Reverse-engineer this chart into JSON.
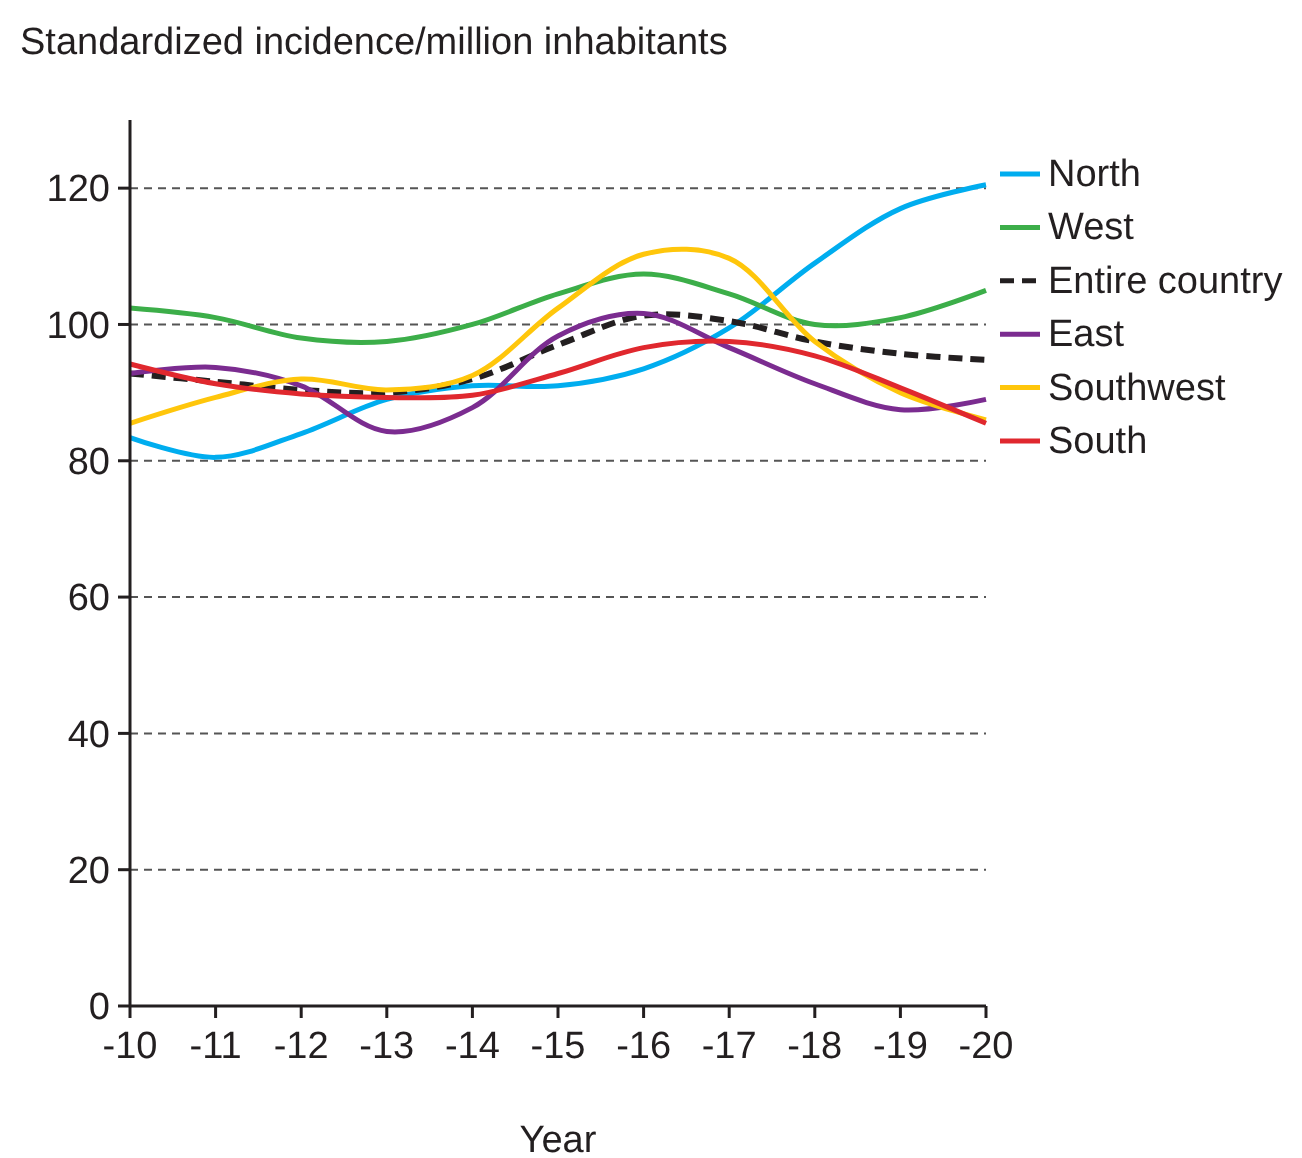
{
  "chart_data": {
    "type": "line",
    "title": "Standardized incidence/million inhabitants",
    "xlabel": "Year",
    "categories": [
      "-10",
      "-11",
      "-12",
      "-13",
      "-14",
      "-15",
      "-16",
      "-17",
      "-18",
      "-19",
      "-20"
    ],
    "series": [
      {
        "name": "North",
        "color": "#00adef",
        "values": [
          83.4,
          80.5,
          84,
          89,
          91,
          91,
          93.5,
          99.5,
          109,
          117,
          120.5
        ]
      },
      {
        "name": "West",
        "color": "#3cae49",
        "values": [
          102.4,
          101,
          98,
          97.5,
          100,
          104.5,
          107.4,
          104.5,
          100,
          101,
          105
        ]
      },
      {
        "name": "Entire country",
        "color": "#231f20",
        "line_style": "dashed",
        "values": [
          92.8,
          91.6,
          90.4,
          90,
          92,
          97,
          101.3,
          100.5,
          97.5,
          95.7,
          94.8
        ]
      },
      {
        "name": "East",
        "color": "#7b2c90",
        "values": [
          92.8,
          93.7,
          91,
          84.3,
          87.8,
          98.3,
          101.6,
          96.6,
          91.3,
          87.5,
          89
        ]
      },
      {
        "name": "Southwest",
        "color": "#ffc60b",
        "values": [
          85.5,
          89.3,
          92,
          90.4,
          92.5,
          102.4,
          110.3,
          109.7,
          97.5,
          90,
          86
        ]
      },
      {
        "name": "South",
        "color": "#e0282e",
        "values": [
          94.2,
          91.3,
          89.8,
          89.3,
          89.6,
          92.8,
          96.6,
          97.5,
          95.4,
          90.7,
          85.5
        ]
      }
    ],
    "ylim": [
      0,
      130
    ],
    "yticks": [
      0,
      20,
      40,
      60,
      80,
      100,
      120
    ],
    "grid": "y",
    "legend": "right",
    "line_style": "solid"
  }
}
